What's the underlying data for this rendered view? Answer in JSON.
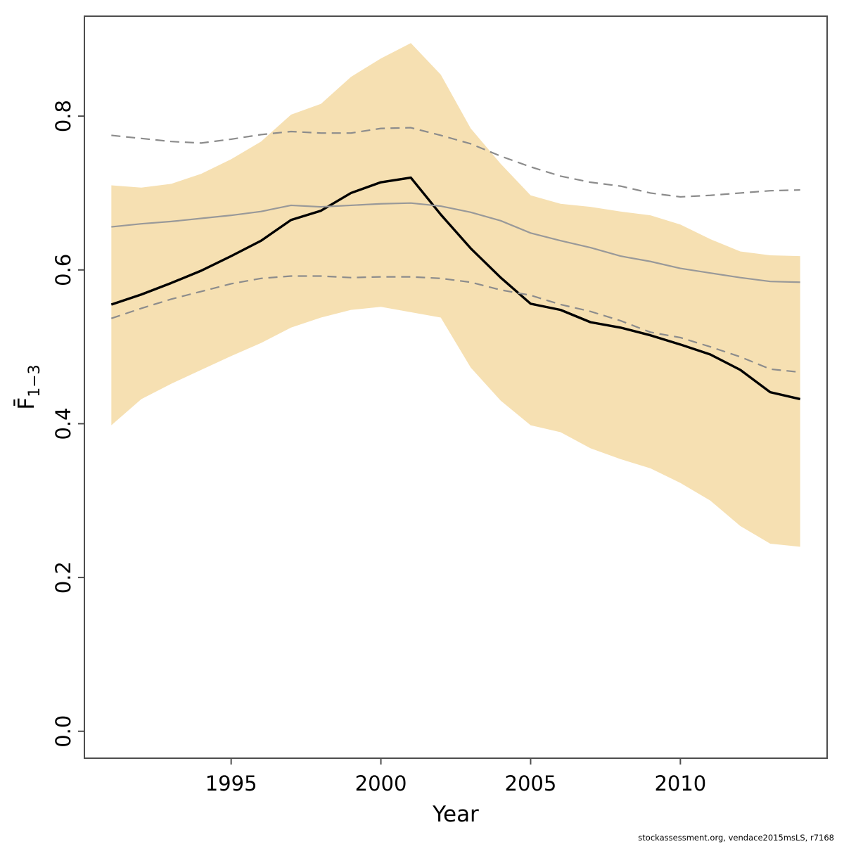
{
  "footer": "stockassessment.org, vendace2015msLS, r7168",
  "chart_data": {
    "type": "line",
    "title": "",
    "xlabel": "Year",
    "ylabel_parts": {
      "base": "F",
      "overbar": true,
      "subscript": "1−3"
    },
    "xlim": [
      1990.1,
      2014.9
    ],
    "ylim": [
      -0.035,
      0.93
    ],
    "grid": false,
    "legend": "none",
    "x_ticks": [
      1995,
      2000,
      2005,
      2010
    ],
    "y_ticks": [
      "0.0",
      "0.2",
      "0.4",
      "0.6",
      "0.8"
    ],
    "years": [
      1991,
      1992,
      1993,
      1994,
      1995,
      1996,
      1997,
      1998,
      1999,
      2000,
      2001,
      2002,
      2003,
      2004,
      2005,
      2006,
      2007,
      2008,
      2009,
      2010,
      2011,
      2012,
      2013,
      2014
    ],
    "series": [
      {
        "name": "fbar-estimate-black",
        "style": "solid",
        "color": "#000000",
        "width": 3.4,
        "values": [
          0.555,
          0.568,
          0.583,
          0.599,
          0.618,
          0.638,
          0.665,
          0.677,
          0.7,
          0.714,
          0.72,
          0.672,
          0.628,
          0.59,
          0.556,
          0.548,
          0.532,
          0.525,
          0.515,
          0.503,
          0.49,
          0.47,
          0.441,
          0.432
        ]
      },
      {
        "name": "reference-run-fbar-gray",
        "style": "solid",
        "color": "#999999",
        "width": 2.2,
        "values": [
          0.656,
          0.66,
          0.663,
          0.667,
          0.671,
          0.676,
          0.684,
          0.682,
          0.684,
          0.686,
          0.687,
          0.683,
          0.675,
          0.664,
          0.648,
          0.638,
          0.629,
          0.618,
          0.611,
          0.602,
          0.596,
          0.59,
          0.585,
          0.584
        ]
      },
      {
        "name": "reference-run-ci-upper-dashed",
        "style": "dashed",
        "color": "#8c8c8c",
        "width": 2.2,
        "values": [
          0.775,
          0.771,
          0.767,
          0.765,
          0.77,
          0.776,
          0.78,
          0.778,
          0.778,
          0.784,
          0.785,
          0.775,
          0.764,
          0.748,
          0.734,
          0.722,
          0.714,
          0.709,
          0.7,
          0.695,
          0.697,
          0.7,
          0.703,
          0.704
        ]
      },
      {
        "name": "reference-run-ci-lower-dashed",
        "style": "dashed",
        "color": "#8c8c8c",
        "width": 2.2,
        "values": [
          0.537,
          0.55,
          0.562,
          0.572,
          0.582,
          0.589,
          0.592,
          0.592,
          0.59,
          0.591,
          0.591,
          0.589,
          0.584,
          0.574,
          0.567,
          0.555,
          0.546,
          0.534,
          0.519,
          0.512,
          0.5,
          0.487,
          0.471,
          0.467
        ]
      }
    ],
    "band": {
      "name": "confidence-band",
      "color": "#f6e0b2",
      "upper": [
        0.71,
        0.707,
        0.712,
        0.725,
        0.744,
        0.767,
        0.802,
        0.816,
        0.851,
        0.875,
        0.895,
        0.854,
        0.784,
        0.738,
        0.697,
        0.686,
        0.682,
        0.676,
        0.671,
        0.659,
        0.64,
        0.624,
        0.619,
        0.618
      ],
      "lower": [
        0.398,
        0.432,
        0.452,
        0.47,
        0.488,
        0.505,
        0.525,
        0.538,
        0.548,
        0.552,
        0.545,
        0.538,
        0.473,
        0.43,
        0.398,
        0.389,
        0.368,
        0.354,
        0.342,
        0.323,
        0.3,
        0.267,
        0.244,
        0.24
      ]
    },
    "frame_color": "#4d4d4d",
    "text_color": "#000000"
  }
}
